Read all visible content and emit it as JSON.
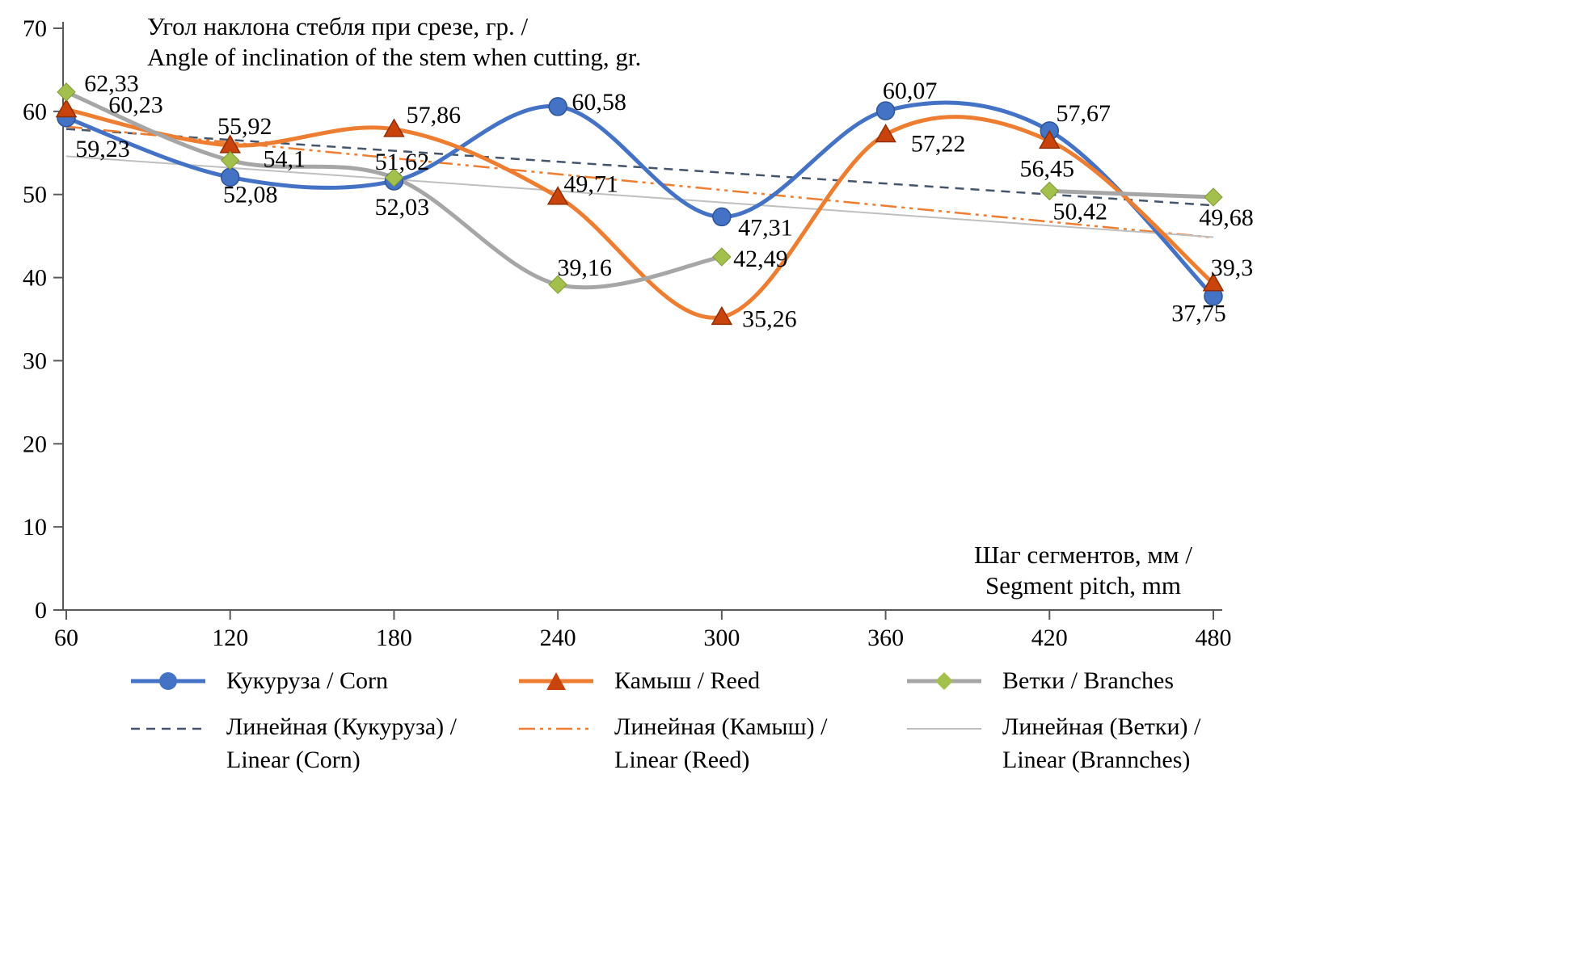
{
  "chart_data": {
    "type": "line",
    "title_ru": "Угол наклона стебля при срезе, гр. /",
    "title_en": "Angle of inclination of the stem when cutting, gr.",
    "xlabel_ru": "Шаг сегментов, мм /",
    "xlabel_en": "Segment pitch, mm",
    "x": [
      60,
      120,
      180,
      240,
      300,
      360,
      420,
      480
    ],
    "xticks": [
      "60",
      "120",
      "180",
      "240",
      "300",
      "360",
      "420",
      "480"
    ],
    "yticks": [
      "0",
      "10",
      "20",
      "30",
      "40",
      "50",
      "60",
      "70"
    ],
    "ylim": [
      0,
      70
    ],
    "grid": false,
    "legend_position": "bottom",
    "series": [
      {
        "key": "corn",
        "name": "Кукуруза / Corn",
        "color": "#4472C4",
        "marker": "circle",
        "marker_color": "#4472C4",
        "values": [
          59.23,
          52.08,
          51.62,
          60.58,
          47.31,
          60.07,
          57.67,
          37.75
        ],
        "labels": [
          "59,23",
          "52,08",
          "51,62",
          "60,58",
          "47,31",
          "60,07",
          "57,67",
          "37,75"
        ]
      },
      {
        "key": "reed",
        "name": "Камыш / Reed",
        "color": "#ED7D31",
        "marker": "triangle",
        "marker_color": "#C9440D",
        "values": [
          60.23,
          55.92,
          57.86,
          49.71,
          35.26,
          57.22,
          56.45,
          39.3
        ],
        "labels": [
          "60,23",
          "55,92",
          "57,86",
          "49,71",
          "35,26",
          "57,22",
          "56,45",
          "39,3"
        ]
      },
      {
        "key": "branches",
        "name": "Ветки / Branches",
        "color": "#A6A6A6",
        "marker": "diamond",
        "marker_color": "#A4C04C",
        "values": [
          62.33,
          54.1,
          52.03,
          39.16,
          42.49,
          null,
          50.42,
          49.68
        ],
        "labels": [
          "62,33",
          "54,1",
          "52,03",
          "39,16",
          "42,49",
          null,
          "50,42",
          "49,68"
        ]
      }
    ],
    "trendlines": [
      {
        "key": "trend-corn",
        "name_ru": "Линейная (Кукуруза) /",
        "name_en": "Linear (Corn)",
        "series": 0,
        "color": "#44546A",
        "dash": "11 8",
        "width": 2.5
      },
      {
        "key": "trend-reed",
        "name_ru": "Линейная (Камыш) /",
        "name_en": "Linear (Reed)",
        "series": 1,
        "color": "#ED7D31",
        "dash": "20 6 4 6 4 6",
        "width": 2.5
      },
      {
        "key": "trend-branches",
        "name_ru": "Линейная (Ветки) /",
        "name_en": "Linear (Brannches)",
        "series": 2,
        "color": "#BFBFBF",
        "dash": "",
        "width": 2
      }
    ]
  }
}
